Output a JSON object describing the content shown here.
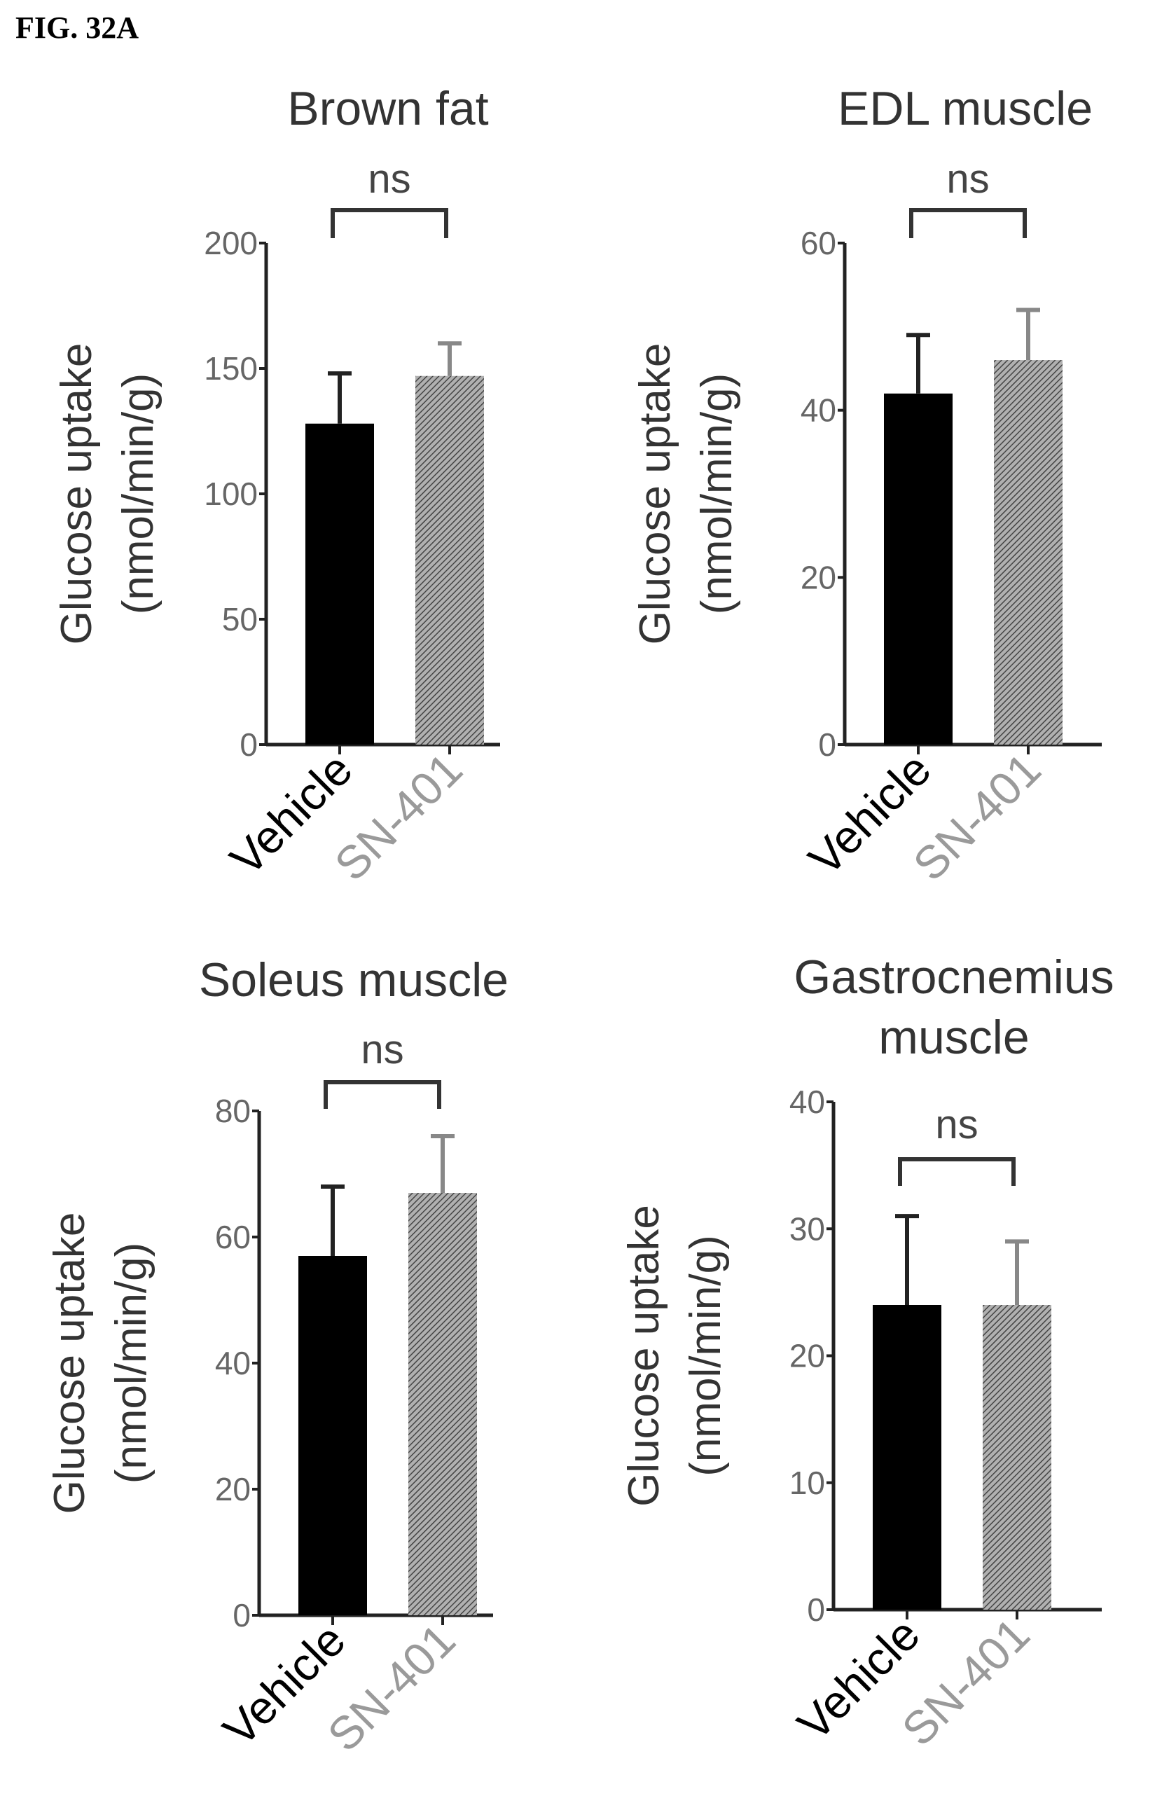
{
  "figure_label": "FIG. 32A",
  "colors": {
    "vehicle": "#000000",
    "sn401": "#8a8a8a",
    "axis": "#222222",
    "sn401_label": "#9a9a9a"
  },
  "chart_data": [
    {
      "type": "bar",
      "title": [
        "Brown fat"
      ],
      "ylabel": [
        "Glucose uptake",
        "(nmol/min/g)"
      ],
      "categories": [
        "Vehicle",
        "SN-401"
      ],
      "values": [
        128,
        147
      ],
      "errors": [
        20,
        13
      ],
      "ylim": [
        0,
        200
      ],
      "yticks": [
        0,
        50,
        100,
        150,
        200
      ],
      "significance": "ns"
    },
    {
      "type": "bar",
      "title": [
        "EDL muscle"
      ],
      "ylabel": [
        "Glucose uptake",
        "(nmol/min/g)"
      ],
      "categories": [
        "Vehicle",
        "SN-401"
      ],
      "values": [
        42,
        46
      ],
      "errors": [
        7,
        6
      ],
      "ylim": [
        0,
        60
      ],
      "yticks": [
        0,
        20,
        40,
        60
      ],
      "significance": "ns"
    },
    {
      "type": "bar",
      "title": [
        "Soleus muscle"
      ],
      "ylabel": [
        "Glucose uptake",
        "(nmol/min/g)"
      ],
      "categories": [
        "Vehicle",
        "SN-401"
      ],
      "values": [
        57,
        67
      ],
      "errors": [
        11,
        9
      ],
      "ylim": [
        0,
        80
      ],
      "yticks": [
        0,
        20,
        40,
        60,
        80
      ],
      "significance": "ns"
    },
    {
      "type": "bar",
      "title": [
        "Gastrocnemius",
        "muscle"
      ],
      "ylabel": [
        "Glucose uptake",
        "(nmol/min/g)"
      ],
      "categories": [
        "Vehicle",
        "SN-401"
      ],
      "values": [
        24,
        24
      ],
      "errors": [
        7,
        5
      ],
      "ylim": [
        0,
        40
      ],
      "yticks": [
        0,
        10,
        20,
        30,
        40
      ],
      "significance": "ns"
    }
  ]
}
